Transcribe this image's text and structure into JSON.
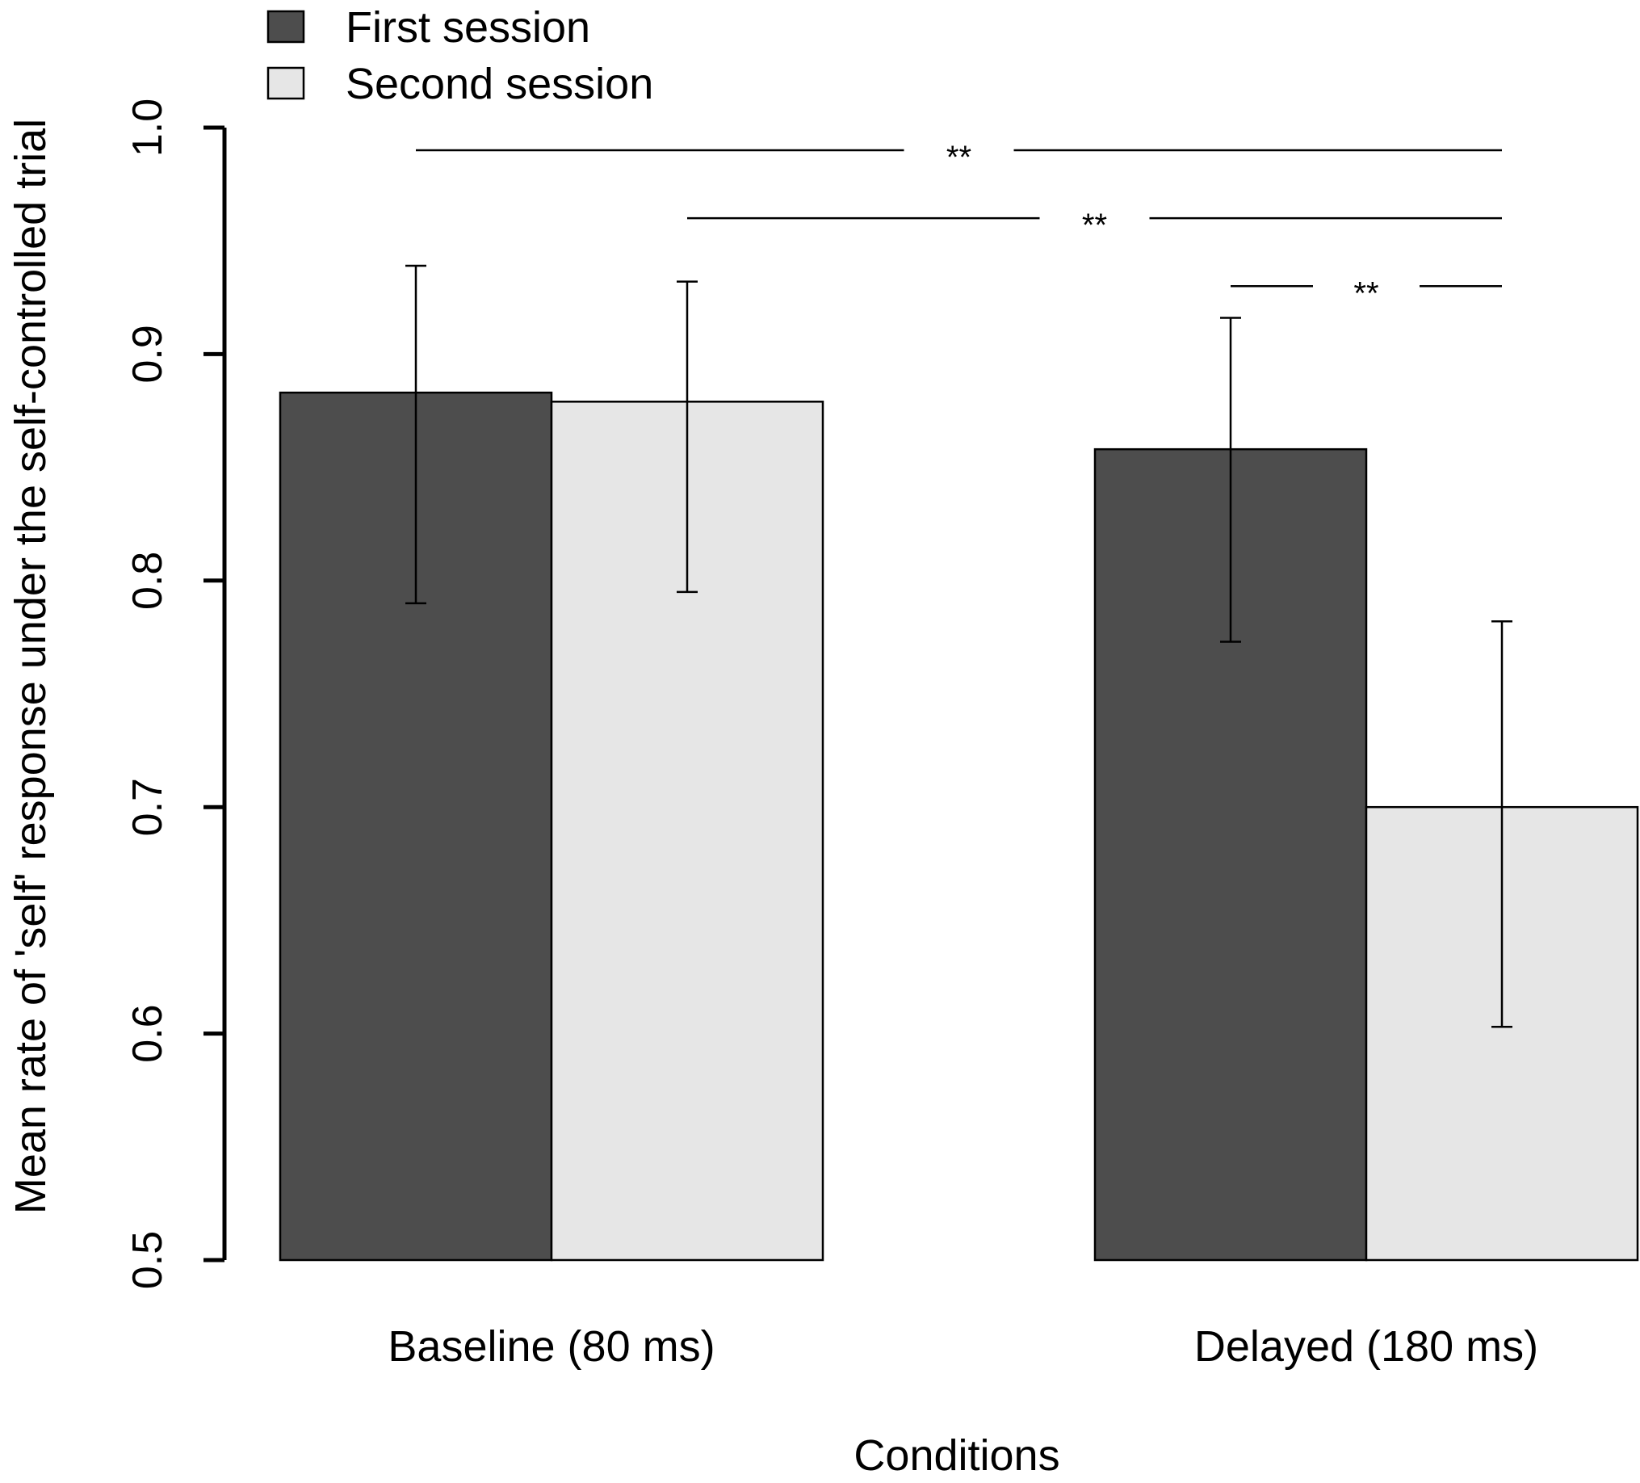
{
  "chart_data": {
    "type": "bar",
    "title": "",
    "xlabel": "Conditions",
    "ylabel": "Mean rate of 'self' response under the self-controlled trial",
    "ylim": [
      0.5,
      1.0
    ],
    "yticks": [
      "0.5",
      "0.6",
      "0.7",
      "0.8",
      "0.9",
      "1.0"
    ],
    "categories": [
      "Baseline (80 ms)",
      "Delayed (180 ms)"
    ],
    "series": [
      {
        "name": "First session",
        "color": "#4d4d4d",
        "values": [
          0.883,
          0.858
        ],
        "error_low": [
          0.79,
          0.773
        ],
        "error_high": [
          0.939,
          0.916
        ]
      },
      {
        "name": "Second session",
        "color": "#e6e6e6",
        "values": [
          0.879,
          0.7
        ],
        "error_low": [
          0.795,
          0.603
        ],
        "error_high": [
          0.932,
          0.782
        ]
      }
    ],
    "legend": {
      "position": "top-left",
      "entries": [
        "First session",
        "Second session"
      ]
    },
    "significance": [
      {
        "from": "Baseline (80 ms) / First session",
        "to": "Delayed (180 ms) / Second session",
        "label": "**",
        "level": 0.99
      },
      {
        "from": "Baseline (80 ms) / Second session",
        "to": "Delayed (180 ms) / Second session",
        "label": "**",
        "level": 0.96
      },
      {
        "from": "Delayed (180 ms) / First session",
        "to": "Delayed (180 ms) / Second session",
        "label": "**",
        "level": 0.93
      }
    ]
  }
}
